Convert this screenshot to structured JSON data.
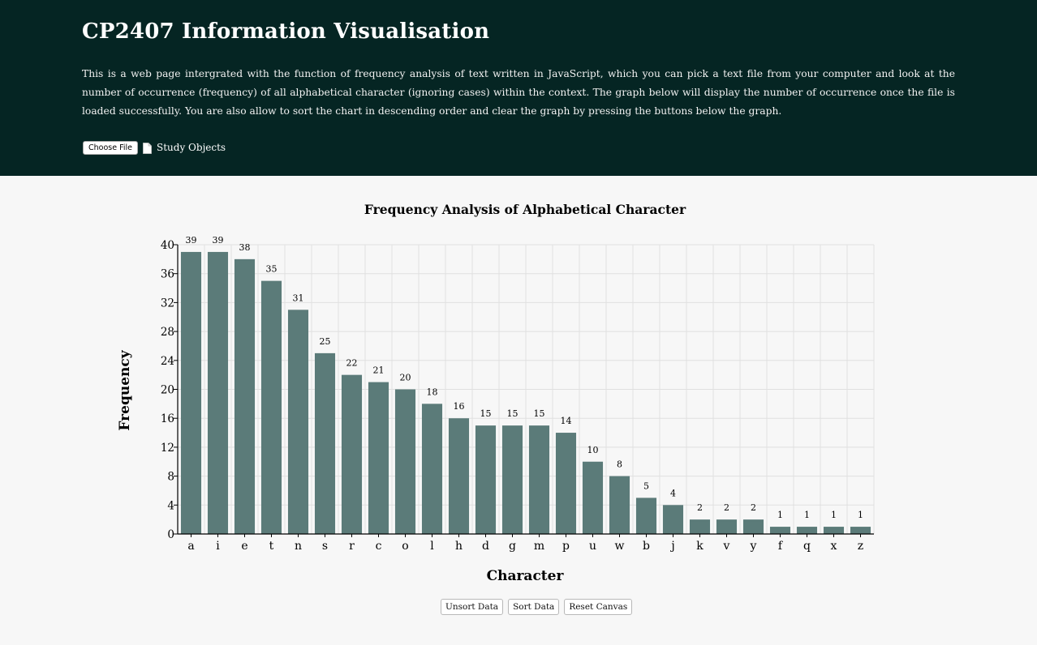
{
  "header": {
    "title": "CP2407 Information Visualisation",
    "description": "This is a web page intergrated with the function of frequency analysis of text written in JavaScript, which you can pick a text file from your computer and look at the number of occurrence (frequency) of all alphabetical character (ignoring cases) within the context. The graph below will display the number of occurrence once the file is loaded successfully. You are also allow to sort the chart in descending order and clear the graph by pressing the buttons below the graph.",
    "choose_file_label": "Choose File",
    "file_icon": "document-icon",
    "file_name": "Study Objects",
    "background_color": "#052523"
  },
  "chart_data": {
    "type": "bar",
    "title": "Frequency Analysis of Alphabetical Character",
    "xlabel": "Character",
    "ylabel": "Frequency",
    "categories": [
      "a",
      "i",
      "e",
      "t",
      "n",
      "s",
      "r",
      "c",
      "o",
      "l",
      "h",
      "d",
      "g",
      "m",
      "p",
      "u",
      "w",
      "b",
      "j",
      "k",
      "v",
      "y",
      "f",
      "q",
      "x",
      "z"
    ],
    "values": [
      39,
      39,
      38,
      35,
      31,
      25,
      22,
      21,
      20,
      18,
      16,
      15,
      15,
      15,
      14,
      10,
      8,
      5,
      4,
      2,
      2,
      2,
      1,
      1,
      1,
      1
    ],
    "ylim": [
      0,
      40
    ],
    "yticks": [
      0,
      4,
      8,
      12,
      16,
      20,
      24,
      28,
      32,
      36,
      40
    ],
    "grid": true,
    "bar_color": "#5b7b79",
    "sorted": "descending"
  },
  "controls": {
    "unsort_label": "Unsort Data",
    "sort_label": "Sort Data",
    "reset_label": "Reset Canvas"
  }
}
